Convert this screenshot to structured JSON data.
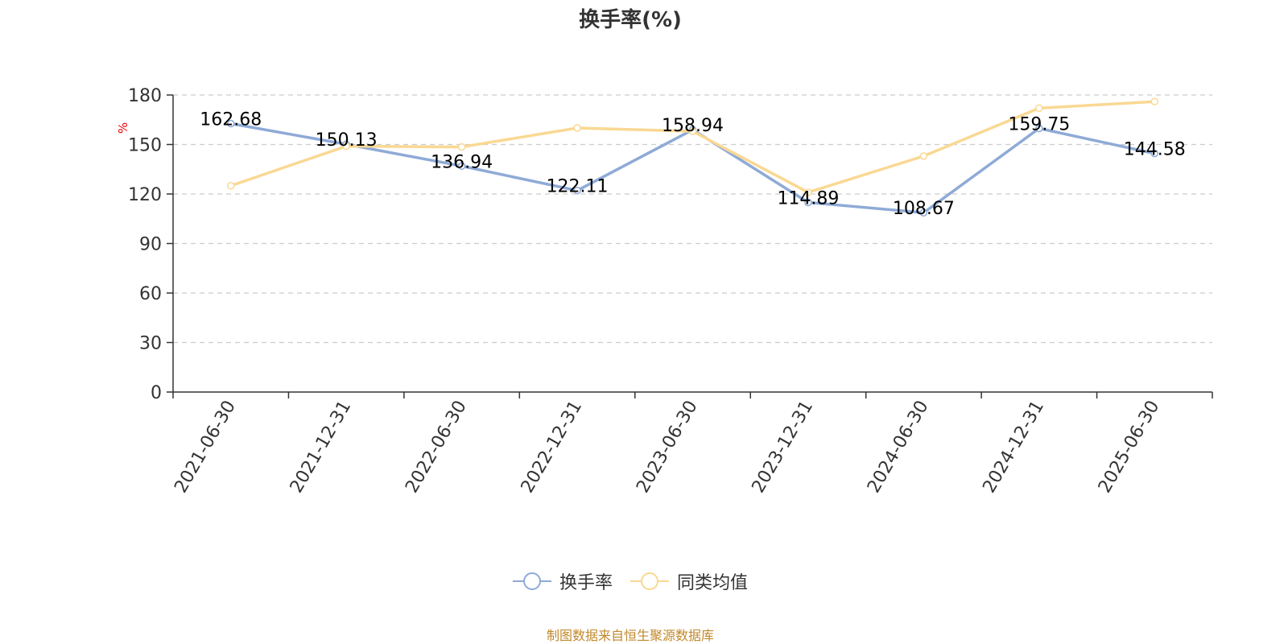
{
  "chart_data": {
    "type": "line",
    "title": "换手率(%)",
    "ylabel": "%",
    "xlabel": "",
    "ylim": [
      0,
      180
    ],
    "yticks": [
      0,
      30,
      60,
      90,
      120,
      150,
      180
    ],
    "categories": [
      "2021-06-30",
      "2021-12-31",
      "2022-06-30",
      "2022-12-31",
      "2023-06-30",
      "2023-12-31",
      "2024-06-30",
      "2024-12-31",
      "2025-06-30"
    ],
    "grid": true,
    "legend_position": "bottom-center",
    "series": [
      {
        "name": "换手率",
        "color": "#8eaad7",
        "values": [
          162.68,
          150.13,
          136.94,
          122.11,
          158.94,
          114.89,
          108.67,
          159.75,
          144.58
        ],
        "labels": [
          "162.68",
          "150.13",
          "136.94",
          "122.11",
          "158.94",
          "114.89",
          "108.67",
          "159.75",
          "144.58"
        ]
      },
      {
        "name": "同类均值",
        "color": "#fad893",
        "values": [
          125,
          149,
          148.5,
          160,
          158,
          121,
          143,
          172,
          176
        ],
        "labels": []
      }
    ],
    "source_note": "制图数据来自恒生聚源数据库"
  }
}
